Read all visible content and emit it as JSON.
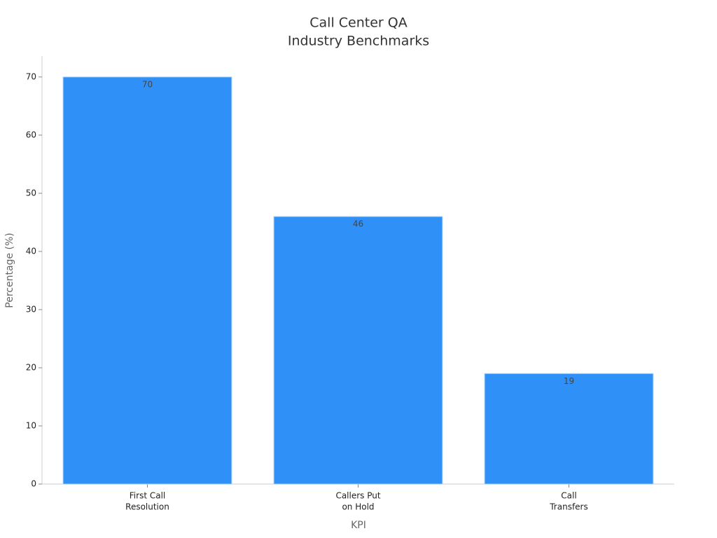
{
  "chart_data": {
    "type": "bar",
    "title": [
      "Call Center QA",
      "Industry Benchmarks"
    ],
    "categories": [
      [
        "First Call",
        "Resolution"
      ],
      [
        "Callers Put",
        "on Hold"
      ],
      [
        "Call",
        "Transfers"
      ]
    ],
    "values": [
      70,
      46,
      19
    ],
    "color": "#2f91f7",
    "xlabel": "KPI",
    "ylabel": "Percentage (%)",
    "ylim": [
      0,
      73.6
    ],
    "yticks": [
      0,
      10,
      20,
      30,
      40,
      50,
      60,
      70
    ],
    "grid": false
  }
}
